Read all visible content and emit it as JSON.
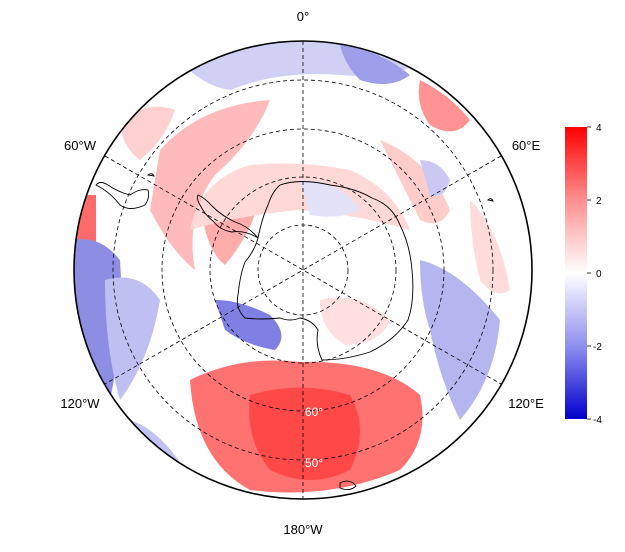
{
  "map": {
    "projection": "south-polar-stereographic",
    "longitude_labels": {
      "top": "0°",
      "upper_left": "60°W",
      "upper_right": "60°E",
      "lower_left": "120°W",
      "lower_right": "120°E",
      "bottom": "180°W"
    },
    "latitude_labels": [
      "60°",
      "50°"
    ],
    "coastline_color": "#000000",
    "graticule_style": "dashed"
  },
  "colorbar": {
    "ticks": [
      "4",
      "2",
      "0",
      "-2",
      "-4"
    ],
    "min": -4,
    "max": 4,
    "colors": {
      "high": "#ff0000",
      "mid": "#ffffff",
      "low": "#0000cc"
    }
  }
}
